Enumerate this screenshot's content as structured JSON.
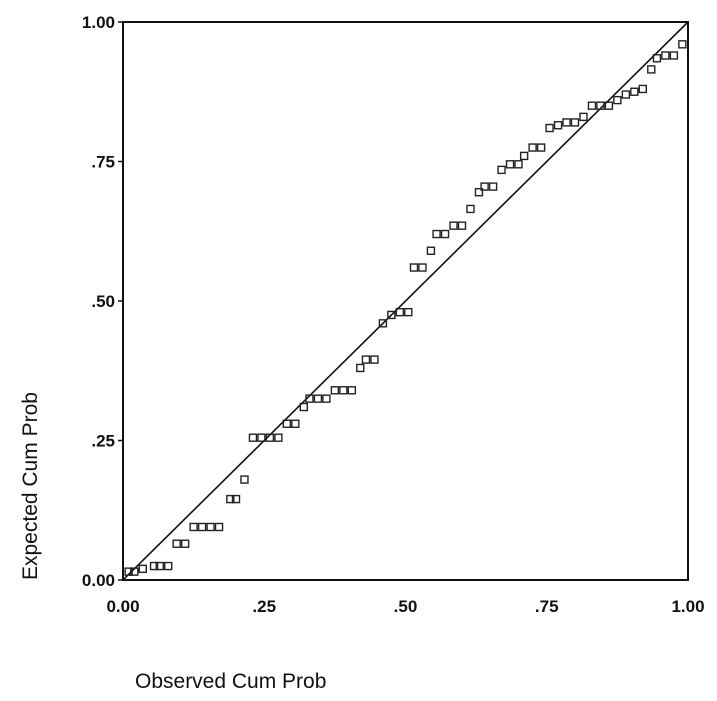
{
  "chart_data": {
    "type": "scatter",
    "xlabel": "Observed Cum Prob",
    "ylabel": "Expected Cum Prob",
    "xlim": [
      0,
      1
    ],
    "ylim": [
      0,
      1
    ],
    "grid": false,
    "x_ticks": [
      ".00|0.00",
      ".25|.25",
      ".50|.50",
      ".75|.75",
      "1.00|1.00"
    ],
    "y_ticks": [
      ".00|0.00",
      ".25|.25",
      ".50|.50",
      ".75|.75",
      "1.00|1.00"
    ],
    "reference_line": {
      "from": [
        0,
        0
      ],
      "to": [
        1,
        1
      ]
    },
    "points": [
      [
        0.01,
        0.015
      ],
      [
        0.02,
        0.015
      ],
      [
        0.035,
        0.02
      ],
      [
        0.055,
        0.025
      ],
      [
        0.065,
        0.025
      ],
      [
        0.08,
        0.025
      ],
      [
        0.095,
        0.065
      ],
      [
        0.11,
        0.065
      ],
      [
        0.125,
        0.095
      ],
      [
        0.14,
        0.095
      ],
      [
        0.155,
        0.095
      ],
      [
        0.17,
        0.095
      ],
      [
        0.19,
        0.145
      ],
      [
        0.2,
        0.145
      ],
      [
        0.215,
        0.18
      ],
      [
        0.23,
        0.255
      ],
      [
        0.245,
        0.255
      ],
      [
        0.26,
        0.255
      ],
      [
        0.275,
        0.255
      ],
      [
        0.29,
        0.28
      ],
      [
        0.305,
        0.28
      ],
      [
        0.32,
        0.31
      ],
      [
        0.33,
        0.325
      ],
      [
        0.345,
        0.325
      ],
      [
        0.36,
        0.325
      ],
      [
        0.375,
        0.34
      ],
      [
        0.39,
        0.34
      ],
      [
        0.405,
        0.34
      ],
      [
        0.42,
        0.38
      ],
      [
        0.43,
        0.395
      ],
      [
        0.445,
        0.395
      ],
      [
        0.46,
        0.46
      ],
      [
        0.475,
        0.475
      ],
      [
        0.49,
        0.48
      ],
      [
        0.505,
        0.48
      ],
      [
        0.515,
        0.56
      ],
      [
        0.53,
        0.56
      ],
      [
        0.545,
        0.59
      ],
      [
        0.555,
        0.62
      ],
      [
        0.57,
        0.62
      ],
      [
        0.585,
        0.635
      ],
      [
        0.6,
        0.635
      ],
      [
        0.615,
        0.665
      ],
      [
        0.63,
        0.695
      ],
      [
        0.64,
        0.705
      ],
      [
        0.655,
        0.705
      ],
      [
        0.67,
        0.735
      ],
      [
        0.685,
        0.745
      ],
      [
        0.7,
        0.745
      ],
      [
        0.71,
        0.76
      ],
      [
        0.725,
        0.775
      ],
      [
        0.74,
        0.775
      ],
      [
        0.755,
        0.81
      ],
      [
        0.77,
        0.815
      ],
      [
        0.785,
        0.82
      ],
      [
        0.8,
        0.82
      ],
      [
        0.815,
        0.83
      ],
      [
        0.83,
        0.85
      ],
      [
        0.845,
        0.85
      ],
      [
        0.86,
        0.85
      ],
      [
        0.875,
        0.86
      ],
      [
        0.89,
        0.87
      ],
      [
        0.905,
        0.875
      ],
      [
        0.92,
        0.88
      ],
      [
        0.935,
        0.915
      ],
      [
        0.945,
        0.935
      ],
      [
        0.96,
        0.94
      ],
      [
        0.975,
        0.94
      ],
      [
        0.99,
        0.96
      ]
    ]
  }
}
